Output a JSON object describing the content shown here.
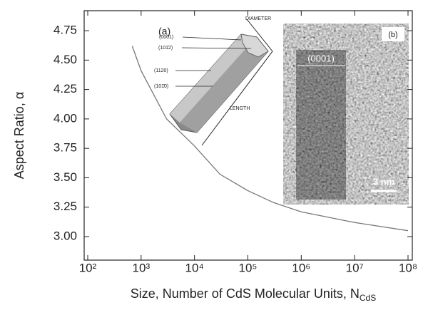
{
  "chart_data": {
    "type": "line",
    "x_label": "Size, Number of CdS Molecular Units, N",
    "x_label_sub": "CdS",
    "y_label": "Aspect Ratio, α",
    "xscale": "log",
    "xlim": [
      100,
      100000000
    ],
    "ylim": [
      2.8,
      4.92
    ],
    "xticks": [
      {
        "value": 100,
        "label": "10²"
      },
      {
        "value": 1000,
        "label": "10³"
      },
      {
        "value": 10000,
        "label": "10⁴"
      },
      {
        "value": 100000,
        "label": "10⁵"
      },
      {
        "value": 1000000,
        "label": "10⁶"
      },
      {
        "value": 10000000,
        "label": "10⁷"
      },
      {
        "value": 100000000,
        "label": "10⁸"
      }
    ],
    "yticks": [
      4.75,
      {
        "value": 4.5,
        "label": "4.50"
      },
      4.25,
      {
        "value": 4,
        "label": "4.00"
      },
      3.75,
      {
        "value": 3.5,
        "label": "3.50"
      },
      3.25,
      {
        "value": 3,
        "label": "3.00"
      }
    ],
    "series": [
      {
        "color": "#777777",
        "x": [
          680,
          1000,
          3000,
          10000,
          30000,
          100000,
          300000,
          1000000,
          10000000,
          100000000
        ],
        "values": [
          4.62,
          4.41,
          4.0,
          3.77,
          3.53,
          3.39,
          3.29,
          3.21,
          3.12,
          3.05
        ]
      }
    ],
    "annotations": {
      "inset_a": {
        "panel": "(a)",
        "facets": [
          "(0001)",
          "(101̄2)",
          "(1120)",
          "(101̄0)"
        ],
        "diameter": "DIAMETER",
        "length": "LENGTH"
      },
      "inset_b": {
        "panel": "(b)",
        "facet": "(0001)",
        "scale": "3 nm"
      }
    }
  }
}
